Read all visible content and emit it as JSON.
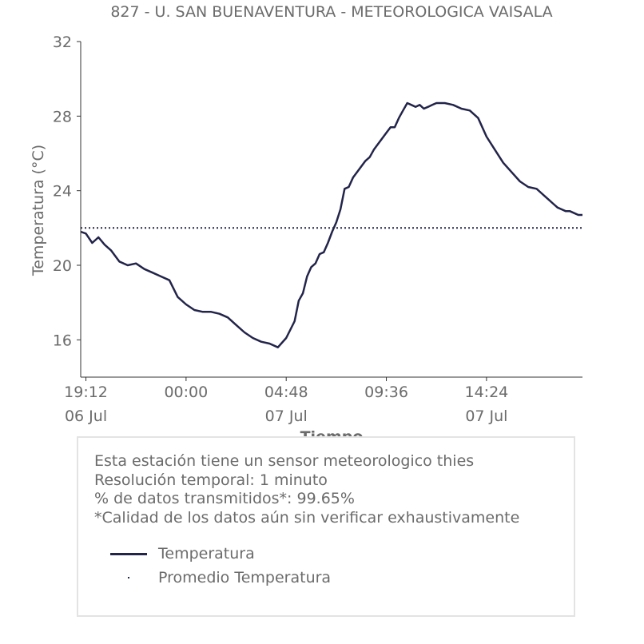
{
  "chart_data": {
    "type": "line",
    "title": "827 - U. SAN BUENAVENTURA - METEOROLOGICA VAISALA",
    "xlabel": "Tiempo",
    "ylabel": "Temperatura (°C)",
    "ylim": [
      14,
      32
    ],
    "yticks": [
      16,
      20,
      24,
      28,
      32
    ],
    "xticks": [
      {
        "time": "19:12",
        "date": "06 Jul"
      },
      {
        "time": "00:00",
        "date": ""
      },
      {
        "time": "04:48",
        "date": "07 Jul"
      },
      {
        "time": "09:36",
        "date": ""
      },
      {
        "time": "14:24",
        "date": "07 Jul"
      }
    ],
    "xlim_hours": [
      18.95,
      43.0
    ],
    "grid": false,
    "series": [
      {
        "name": "Temperatura",
        "style": "solid",
        "color": "#22244a",
        "x_hours": [
          18.95,
          19.2,
          19.5,
          19.8,
          20.1,
          20.4,
          20.8,
          21.2,
          21.6,
          22.0,
          22.4,
          22.8,
          23.2,
          23.6,
          24.0,
          24.4,
          24.8,
          25.2,
          25.6,
          26.0,
          26.4,
          26.8,
          27.2,
          27.6,
          28.0,
          28.4,
          28.8,
          29.2,
          29.4,
          29.6,
          29.8,
          30.0,
          30.2,
          30.4,
          30.6,
          30.8,
          31.0,
          31.2,
          31.4,
          31.6,
          31.8,
          32.0,
          32.2,
          32.4,
          32.6,
          32.8,
          33.0,
          33.2,
          33.4,
          33.6,
          33.8,
          34.0,
          34.2,
          34.4,
          34.6,
          34.8,
          35.0,
          35.2,
          35.4,
          35.6,
          35.8,
          36.0,
          36.4,
          36.8,
          37.2,
          37.6,
          38.0,
          38.4,
          38.8,
          39.2,
          39.6,
          40.0,
          40.4,
          40.8,
          41.0,
          41.2,
          41.4,
          41.6,
          41.8,
          42.0,
          42.2,
          42.4,
          42.6,
          42.8,
          43.0
        ],
        "values": [
          21.8,
          21.7,
          21.2,
          21.5,
          21.1,
          20.8,
          20.2,
          20.0,
          20.1,
          19.8,
          19.6,
          19.4,
          19.2,
          18.3,
          17.9,
          17.6,
          17.5,
          17.5,
          17.4,
          17.2,
          16.8,
          16.4,
          16.1,
          15.9,
          15.8,
          15.6,
          16.1,
          17.0,
          18.1,
          18.5,
          19.4,
          19.9,
          20.1,
          20.6,
          20.7,
          21.2,
          21.8,
          22.3,
          23.0,
          24.1,
          24.2,
          24.7,
          25.0,
          25.3,
          25.6,
          25.8,
          26.2,
          26.5,
          26.8,
          27.1,
          27.4,
          27.4,
          27.9,
          28.3,
          28.7,
          28.6,
          28.5,
          28.6,
          28.4,
          28.5,
          28.6,
          28.7,
          28.7,
          28.6,
          28.4,
          28.3,
          27.9,
          26.9,
          26.2,
          25.5,
          25.0,
          24.5,
          24.2,
          24.1,
          23.9,
          23.7,
          23.5,
          23.3,
          23.1,
          23.0,
          22.9,
          22.9,
          22.8,
          22.7,
          22.7
        ]
      },
      {
        "name": "Promedio Temperatura",
        "style": "dotted",
        "color": "#22244a",
        "x_hours": [
          18.95,
          43.0
        ],
        "values": [
          22.0,
          22.0
        ]
      }
    ]
  },
  "info": {
    "lines": [
      "Esta estación tiene un sensor meteorologico thies",
      "Resolución temporal: 1 minuto",
      "% de datos transmitidos*: 99.65%",
      "*Calidad de los datos aún sin verificar exhaustivamente"
    ]
  },
  "legend": {
    "items": [
      {
        "label": "Temperatura",
        "style": "solid"
      },
      {
        "label": "Promedio Temperatura",
        "style": "dotted"
      }
    ]
  },
  "colors": {
    "line": "#22244a",
    "text": "#6b6b6b",
    "border": "#e3e3e3"
  }
}
